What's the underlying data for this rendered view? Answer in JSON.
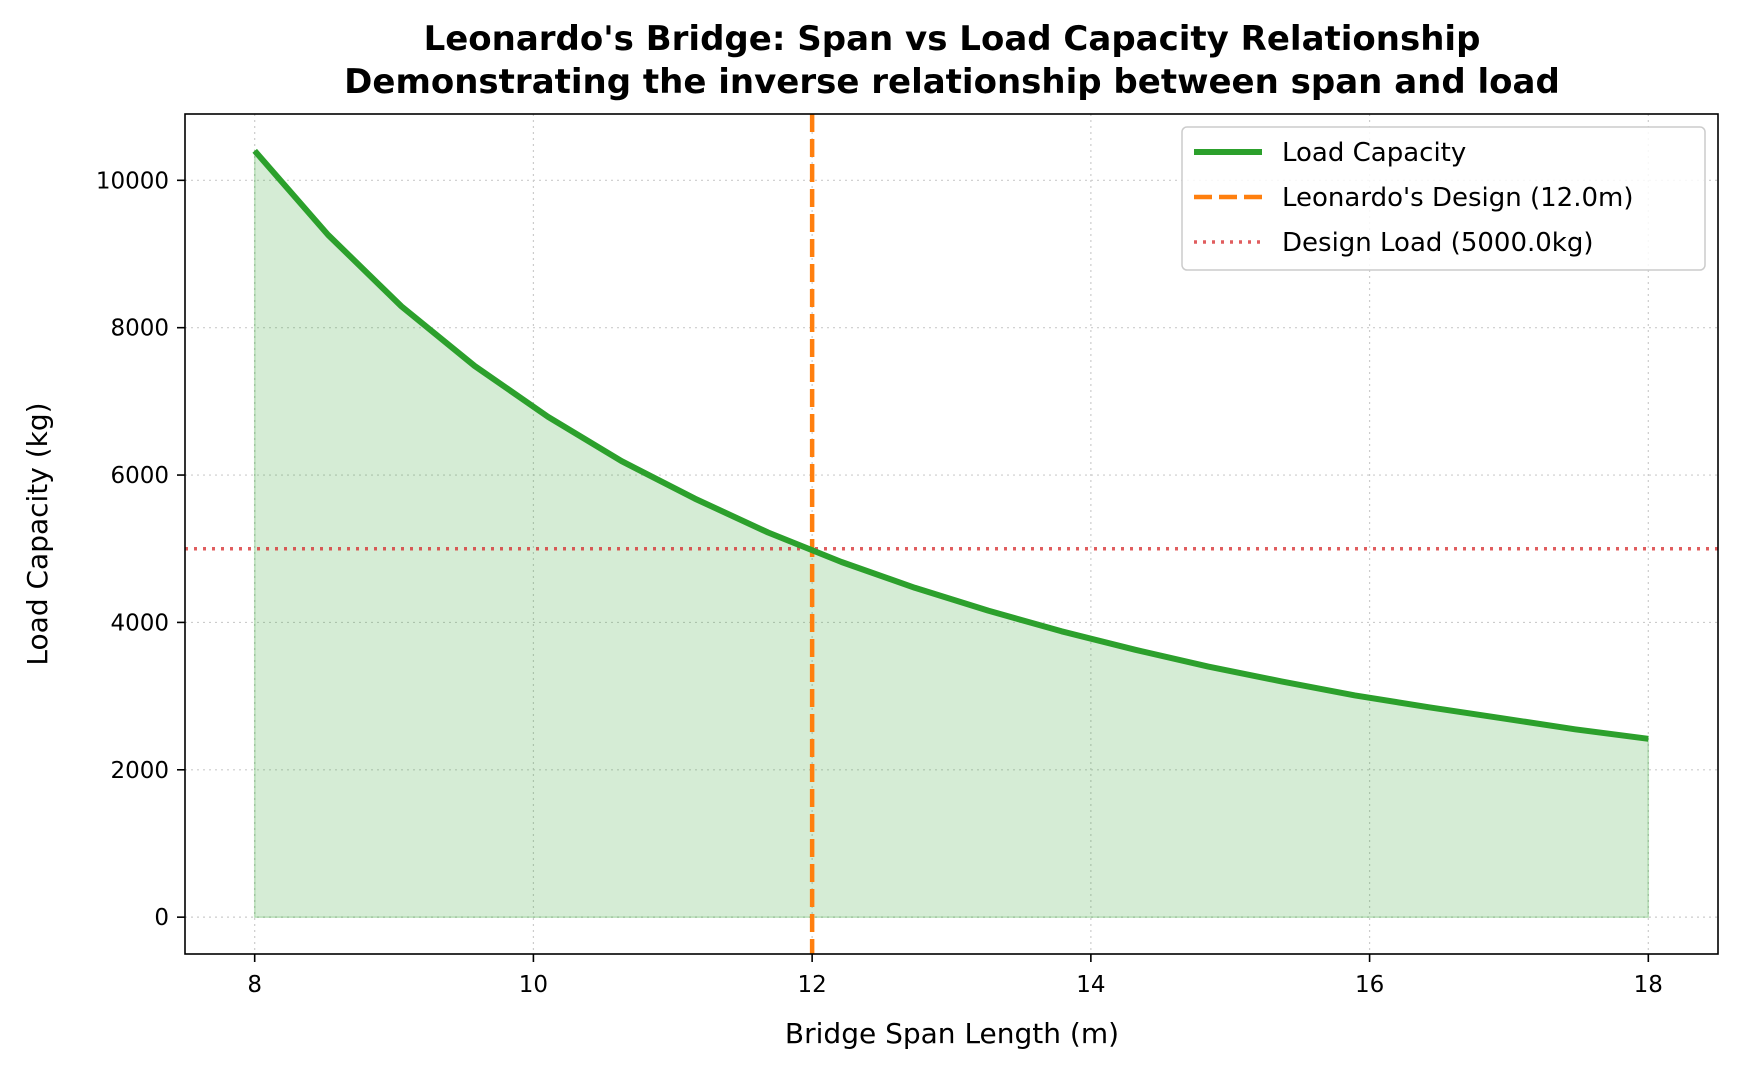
{
  "chart_data": {
    "type": "line",
    "title": "Leonardo's Bridge: Span vs Load Capacity Relationship",
    "subtitle": "Demonstrating the inverse relationship between span and load",
    "xlabel": "Bridge Span Length (m)",
    "ylabel": "Load Capacity (kg)",
    "xlim": [
      7.5,
      18.5
    ],
    "ylim": [
      -500,
      10900
    ],
    "xticks": [
      8,
      10,
      12,
      14,
      16,
      18
    ],
    "yticks": [
      0,
      2000,
      4000,
      6000,
      8000,
      10000
    ],
    "grid": true,
    "legend_position": "top-right",
    "series": [
      {
        "name": "Load Capacity",
        "color": "#2ca02c",
        "style": "solid",
        "fill_color": "#2ca02c",
        "x": [
          8.0,
          8.526,
          9.053,
          9.579,
          10.105,
          10.632,
          11.158,
          11.684,
          12.211,
          12.737,
          13.263,
          13.789,
          14.316,
          14.842,
          15.368,
          15.895,
          16.421,
          16.947,
          17.474,
          18.0
        ],
        "values": [
          10400,
          9260,
          8290,
          7480,
          6790,
          6190,
          5680,
          5220,
          4820,
          4470,
          4160,
          3880,
          3630,
          3400,
          3200,
          3010,
          2850,
          2700,
          2550,
          2420
        ]
      }
    ],
    "reference_lines": [
      {
        "name": "Leonardo's Design (12.0m)",
        "orientation": "vertical",
        "value": 12.0,
        "color": "#ff7f0e",
        "style": "dashed"
      },
      {
        "name": "Design Load (5000.0kg)",
        "orientation": "horizontal",
        "value": 5000,
        "color": "#d62728",
        "style": "dotted"
      }
    ]
  }
}
